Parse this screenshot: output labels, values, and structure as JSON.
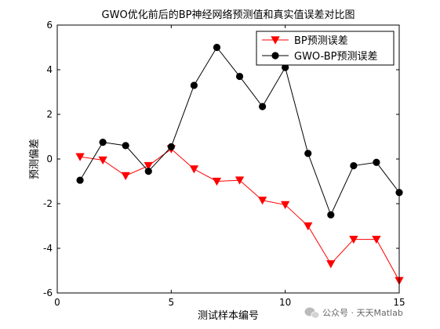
{
  "chart_data": {
    "type": "line",
    "title": "GWO优化前后的BP神经网络预测值和真实值误差对比图",
    "xlabel": "测试样本编号",
    "ylabel": "预测偏差",
    "x": [
      1,
      2,
      3,
      4,
      5,
      6,
      7,
      8,
      9,
      10,
      11,
      12,
      13,
      14,
      15
    ],
    "xlim": [
      0,
      15
    ],
    "ylim": [
      -6,
      6
    ],
    "xticks": [
      0,
      5,
      10,
      15
    ],
    "yticks": [
      -6,
      -4,
      -2,
      0,
      2,
      4,
      6
    ],
    "grid": false,
    "legend_position": "top-right",
    "series": [
      {
        "name": "BP预测误差",
        "color": "#ff0000",
        "marker": "triangle-down",
        "values": [
          0.1,
          -0.05,
          -0.75,
          -0.3,
          0.45,
          -0.45,
          -1.0,
          -0.95,
          -1.85,
          -2.05,
          -3.0,
          -4.7,
          -3.6,
          -3.6,
          -5.45
        ]
      },
      {
        "name": "GWO-BP预测误差",
        "color": "#000000",
        "marker": "circle",
        "values": [
          -0.95,
          0.75,
          0.6,
          -0.55,
          0.55,
          3.3,
          5.0,
          3.7,
          2.35,
          4.1,
          0.25,
          -2.5,
          -0.3,
          -0.15,
          -1.5
        ]
      }
    ]
  },
  "watermark": {
    "icon": "wechat-icon",
    "text": "公众号 · 天天Matlab"
  }
}
